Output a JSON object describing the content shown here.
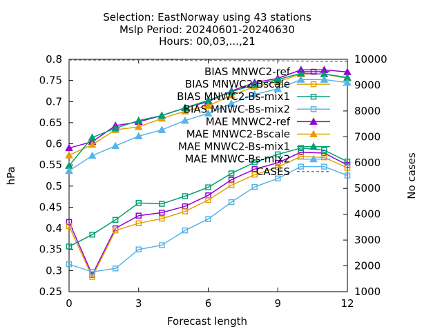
{
  "title_lines": [
    "Selection: EastNorway using    43 stations",
    "Mslp   Period: 20240601-20240630",
    "Hours: 00,03,...,21"
  ],
  "chart_data": {
    "type": "line",
    "xlabel": "Forecast length",
    "ylabel": "hPa",
    "y2label": "No cases",
    "xlim": [
      0,
      12
    ],
    "ylim": [
      0.25,
      0.8
    ],
    "y2lim": [
      1000,
      10000
    ],
    "x_ticks": [
      0,
      3,
      6,
      9,
      12
    ],
    "y_ticks": [
      0.25,
      0.3,
      0.35,
      0.4,
      0.45,
      0.5,
      0.55,
      0.6,
      0.65,
      0.7,
      0.75,
      0.8
    ],
    "y2_ticks": [
      1000,
      2000,
      3000,
      4000,
      5000,
      6000,
      7000,
      8000,
      9000,
      10000
    ],
    "grid": false,
    "legend_position": "top-right",
    "x": [
      0,
      1,
      2,
      3,
      4,
      5,
      6,
      7,
      8,
      9,
      10,
      11,
      12
    ],
    "series": [
      {
        "name": "BIAS MNWC2-ref",
        "color": "#9400d3",
        "marker": "square",
        "values": [
          0.415,
          0.29,
          0.4,
          0.43,
          0.437,
          0.452,
          0.478,
          0.515,
          0.54,
          0.555,
          0.58,
          0.578,
          0.55
        ]
      },
      {
        "name": "BIAS MNWC2-Bscale",
        "color": "#e69f00",
        "marker": "square",
        "values": [
          0.405,
          0.285,
          0.395,
          0.412,
          0.423,
          0.44,
          0.467,
          0.502,
          0.527,
          0.545,
          0.57,
          0.568,
          0.543
        ]
      },
      {
        "name": "BIAS MNWC2-Bs-mix1",
        "color": "#009e73",
        "marker": "square",
        "values": [
          0.357,
          0.385,
          0.42,
          0.46,
          0.458,
          0.476,
          0.497,
          0.53,
          0.556,
          0.575,
          0.59,
          0.585,
          0.558
        ]
      },
      {
        "name": "BIAS MNWC-Bs-mix2",
        "color": "#56b4e9",
        "marker": "square",
        "values": [
          0.315,
          0.297,
          0.305,
          0.35,
          0.36,
          0.395,
          0.422,
          0.462,
          0.498,
          0.518,
          0.546,
          0.546,
          0.525
        ]
      },
      {
        "name": "MAE MNWC2-ref",
        "color": "#9400d3",
        "marker": "triangle",
        "values": [
          0.59,
          0.605,
          0.643,
          0.652,
          0.667,
          0.685,
          0.7,
          0.725,
          0.745,
          0.755,
          0.775,
          0.775,
          0.77
        ]
      },
      {
        "name": "MAE MNWC2-Bscale",
        "color": "#e69f00",
        "marker": "triangle",
        "values": [
          0.573,
          0.598,
          0.633,
          0.64,
          0.66,
          0.677,
          0.69,
          0.715,
          0.735,
          0.747,
          0.765,
          0.765,
          0.755
        ]
      },
      {
        "name": "MAE MNWC2-Bs-mix1",
        "color": "#009e73",
        "marker": "triangle",
        "values": [
          0.548,
          0.615,
          0.637,
          0.655,
          0.667,
          0.685,
          0.703,
          0.723,
          0.74,
          0.752,
          0.767,
          0.765,
          0.757
        ]
      },
      {
        "name": "MAE MNWC-Bs-mix2",
        "color": "#56b4e9",
        "marker": "triangle",
        "values": [
          0.536,
          0.572,
          0.595,
          0.618,
          0.633,
          0.655,
          0.672,
          0.695,
          0.717,
          0.73,
          0.752,
          0.752,
          0.745
        ]
      },
      {
        "name": "CASES",
        "color": "#808080",
        "marker": "none",
        "axis": "y2",
        "dashed": true,
        "values": [
          9970,
          9970,
          9970,
          9970,
          9970,
          9960,
          9960,
          9950,
          9950,
          9940,
          9930,
          9920,
          9920
        ]
      }
    ]
  }
}
